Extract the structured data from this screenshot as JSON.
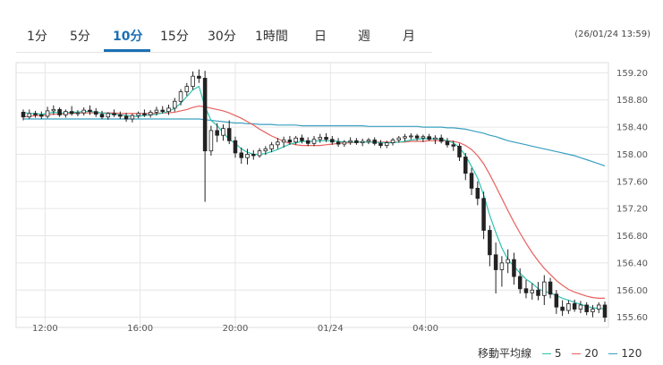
{
  "tabs": [
    {
      "label": "1分",
      "active": false
    },
    {
      "label": "5分",
      "active": false
    },
    {
      "label": "10分",
      "active": true
    },
    {
      "label": "15分",
      "active": false
    },
    {
      "label": "30分",
      "active": false
    },
    {
      "label": "1時間",
      "active": false
    },
    {
      "label": "日",
      "active": false
    },
    {
      "label": "週",
      "active": false
    },
    {
      "label": "月",
      "active": false
    }
  ],
  "timestamp": "(26/01/24 13:59)",
  "legend": {
    "title": "移動平均線",
    "items": [
      {
        "label": "5",
        "color": "#2ec4b0"
      },
      {
        "label": "20",
        "color": "#e8605c"
      },
      {
        "label": "120",
        "color": "#3a9fc0"
      }
    ]
  },
  "colors": {
    "accent": "#1a6fb3",
    "candle": "#222222",
    "grid": "#e6e6e6"
  },
  "chart_data": {
    "type": "line",
    "ylim": [
      155.45,
      159.35
    ],
    "y_ticks": [
      "159.20",
      "158.80",
      "158.40",
      "158.00",
      "157.60",
      "157.20",
      "156.80",
      "156.40",
      "156.00",
      "155.60"
    ],
    "x_ticks": [
      "12:00",
      "16:00",
      "20:00",
      "01/24",
      "04:00"
    ],
    "candles": [
      [
        158.62,
        158.66,
        158.5,
        158.55
      ],
      [
        158.55,
        158.66,
        158.52,
        158.6
      ],
      [
        158.6,
        158.64,
        158.54,
        158.58
      ],
      [
        158.58,
        158.63,
        158.52,
        158.56
      ],
      [
        158.56,
        158.7,
        158.53,
        158.64
      ],
      [
        158.64,
        158.72,
        158.58,
        158.66
      ],
      [
        158.66,
        158.69,
        158.55,
        158.58
      ],
      [
        158.58,
        158.66,
        158.54,
        158.63
      ],
      [
        158.63,
        158.71,
        158.57,
        158.6
      ],
      [
        158.6,
        158.65,
        158.56,
        158.61
      ],
      [
        158.61,
        158.69,
        158.57,
        158.65
      ],
      [
        158.65,
        158.72,
        158.58,
        158.63
      ],
      [
        158.63,
        158.68,
        158.55,
        158.59
      ],
      [
        158.59,
        158.64,
        158.52,
        158.55
      ],
      [
        158.55,
        158.62,
        158.51,
        158.6
      ],
      [
        158.6,
        158.66,
        158.55,
        158.58
      ],
      [
        158.58,
        158.63,
        158.52,
        158.56
      ],
      [
        158.56,
        158.61,
        158.48,
        158.52
      ],
      [
        158.52,
        158.6,
        158.47,
        158.57
      ],
      [
        158.57,
        158.63,
        158.53,
        158.6
      ],
      [
        158.6,
        158.66,
        158.55,
        158.58
      ],
      [
        158.58,
        158.65,
        158.54,
        158.62
      ],
      [
        158.62,
        158.7,
        158.57,
        158.65
      ],
      [
        158.65,
        158.71,
        158.6,
        158.63
      ],
      [
        158.63,
        158.73,
        158.58,
        158.68
      ],
      [
        158.68,
        158.83,
        158.63,
        158.78
      ],
      [
        158.78,
        158.96,
        158.72,
        158.92
      ],
      [
        158.92,
        159.05,
        158.86,
        159.0
      ],
      [
        159.0,
        159.22,
        158.95,
        159.15
      ],
      [
        159.15,
        159.25,
        159.05,
        159.12
      ],
      [
        159.12,
        159.23,
        157.3,
        158.05
      ],
      [
        158.05,
        158.42,
        157.98,
        158.35
      ],
      [
        158.35,
        158.46,
        158.18,
        158.28
      ],
      [
        158.28,
        158.44,
        158.2,
        158.38
      ],
      [
        158.38,
        158.5,
        158.15,
        158.2
      ],
      [
        158.2,
        158.26,
        157.95,
        158.02
      ],
      [
        158.02,
        158.1,
        157.86,
        157.95
      ],
      [
        157.95,
        158.08,
        157.85,
        158.0
      ],
      [
        158.0,
        158.06,
        157.92,
        157.98
      ],
      [
        157.98,
        158.09,
        157.95,
        158.05
      ],
      [
        158.05,
        158.12,
        157.99,
        158.08
      ],
      [
        158.08,
        158.18,
        158.03,
        158.14
      ],
      [
        158.14,
        158.24,
        158.08,
        158.18
      ],
      [
        158.18,
        158.26,
        158.1,
        158.21
      ],
      [
        158.21,
        158.27,
        158.14,
        158.18
      ],
      [
        158.18,
        158.27,
        158.14,
        158.24
      ],
      [
        158.24,
        158.29,
        158.16,
        158.2
      ],
      [
        158.2,
        158.25,
        158.12,
        158.16
      ],
      [
        158.16,
        158.27,
        158.12,
        158.22
      ],
      [
        158.22,
        158.3,
        158.17,
        158.25
      ],
      [
        158.25,
        158.31,
        158.18,
        158.22
      ],
      [
        158.22,
        158.27,
        158.14,
        158.18
      ],
      [
        158.18,
        158.24,
        158.11,
        158.15
      ],
      [
        158.15,
        158.21,
        158.11,
        158.18
      ],
      [
        158.18,
        158.25,
        158.14,
        158.2
      ],
      [
        158.2,
        158.24,
        158.14,
        158.17
      ],
      [
        158.17,
        158.23,
        158.12,
        158.19
      ],
      [
        158.19,
        158.24,
        158.15,
        158.21
      ],
      [
        158.21,
        158.25,
        158.13,
        158.16
      ],
      [
        158.16,
        158.21,
        158.09,
        158.13
      ],
      [
        158.13,
        158.2,
        158.09,
        158.17
      ],
      [
        158.17,
        158.24,
        158.13,
        158.21
      ],
      [
        158.21,
        158.27,
        158.17,
        158.24
      ],
      [
        158.24,
        158.3,
        158.19,
        158.26
      ],
      [
        158.26,
        158.31,
        158.22,
        158.27
      ],
      [
        158.27,
        158.3,
        158.2,
        158.24
      ],
      [
        158.24,
        158.29,
        158.18,
        158.26
      ],
      [
        158.26,
        158.3,
        158.2,
        158.22
      ],
      [
        158.22,
        158.28,
        158.15,
        158.24
      ],
      [
        158.24,
        158.29,
        158.16,
        158.19
      ],
      [
        158.19,
        158.24,
        158.1,
        158.14
      ],
      [
        158.14,
        158.2,
        158.05,
        158.12
      ],
      [
        158.12,
        158.16,
        157.9,
        157.96
      ],
      [
        157.96,
        158.02,
        157.62,
        157.72
      ],
      [
        157.72,
        157.8,
        157.4,
        157.5
      ],
      [
        157.5,
        157.6,
        157.25,
        157.35
      ],
      [
        157.35,
        157.45,
        156.75,
        156.88
      ],
      [
        156.88,
        156.95,
        156.35,
        156.52
      ],
      [
        156.52,
        156.7,
        155.95,
        156.3
      ],
      [
        156.3,
        156.5,
        156.05,
        156.4
      ],
      [
        156.4,
        156.6,
        156.25,
        156.45
      ],
      [
        156.45,
        156.55,
        156.08,
        156.2
      ],
      [
        156.2,
        156.32,
        155.95,
        156.02
      ],
      [
        156.02,
        156.15,
        155.88,
        155.96
      ],
      [
        155.96,
        156.1,
        155.86,
        156.0
      ],
      [
        156.0,
        156.12,
        155.85,
        155.92
      ],
      [
        155.92,
        156.22,
        155.78,
        156.12
      ],
      [
        156.12,
        156.18,
        155.88,
        155.94
      ],
      [
        155.94,
        156.0,
        155.65,
        155.75
      ],
      [
        155.75,
        155.85,
        155.62,
        155.7
      ],
      [
        155.7,
        155.85,
        155.65,
        155.8
      ],
      [
        155.8,
        155.86,
        155.68,
        155.72
      ],
      [
        155.72,
        155.84,
        155.66,
        155.78
      ],
      [
        155.78,
        155.82,
        155.63,
        155.68
      ],
      [
        155.68,
        155.78,
        155.6,
        155.72
      ],
      [
        155.72,
        155.82,
        155.66,
        155.78
      ],
      [
        155.78,
        155.83,
        155.53,
        155.6
      ]
    ],
    "series": [
      {
        "name": "5",
        "color": "#2ec4b0",
        "values": [
          158.62,
          158.6,
          158.6,
          158.59,
          158.6,
          158.62,
          158.61,
          158.61,
          158.62,
          158.62,
          158.63,
          158.63,
          158.62,
          158.61,
          158.6,
          158.59,
          158.58,
          158.57,
          158.56,
          158.56,
          158.57,
          158.58,
          158.59,
          158.61,
          158.63,
          158.68,
          158.75,
          158.85,
          158.95,
          159.0,
          158.7,
          158.5,
          158.42,
          158.32,
          158.22,
          158.16,
          158.08,
          158.03,
          158.0,
          158.0,
          158.01,
          158.04,
          158.07,
          158.11,
          158.15,
          158.17,
          158.19,
          158.19,
          158.19,
          158.2,
          158.2,
          158.2,
          158.19,
          158.18,
          158.18,
          158.18,
          158.18,
          158.18,
          158.18,
          158.17,
          158.17,
          158.17,
          158.18,
          158.19,
          158.21,
          158.22,
          158.23,
          158.23,
          158.23,
          158.22,
          158.2,
          158.17,
          158.1,
          157.98,
          157.82,
          157.65,
          157.4,
          157.1,
          156.85,
          156.62,
          156.45,
          156.35,
          156.25,
          156.16,
          156.1,
          156.02,
          155.98,
          155.96,
          155.92,
          155.88,
          155.85,
          155.82,
          155.79,
          155.76,
          155.74,
          155.73,
          155.72
        ]
      },
      {
        "name": "20",
        "color": "#e8605c",
        "values": [
          158.55,
          158.56,
          158.57,
          158.57,
          158.58,
          158.59,
          158.59,
          158.6,
          158.6,
          158.61,
          158.61,
          158.61,
          158.61,
          158.61,
          158.61,
          158.61,
          158.6,
          158.6,
          158.6,
          158.6,
          158.6,
          158.6,
          158.6,
          158.61,
          158.61,
          158.62,
          158.64,
          158.66,
          158.69,
          158.71,
          158.7,
          158.68,
          158.66,
          158.64,
          158.61,
          158.57,
          158.53,
          158.48,
          158.43,
          158.37,
          158.32,
          158.27,
          158.23,
          158.19,
          158.16,
          158.14,
          158.13,
          158.13,
          158.13,
          158.13,
          158.14,
          158.15,
          158.16,
          158.17,
          158.17,
          158.18,
          158.18,
          158.18,
          158.18,
          158.18,
          158.18,
          158.18,
          158.18,
          158.18,
          158.19,
          158.19,
          158.19,
          158.2,
          158.2,
          158.2,
          158.2,
          158.19,
          158.17,
          158.13,
          158.07,
          157.98,
          157.86,
          157.7,
          157.53,
          157.35,
          157.17,
          157.0,
          156.84,
          156.69,
          156.55,
          156.43,
          156.32,
          156.23,
          156.14,
          156.07,
          156.01,
          155.97,
          155.94,
          155.91,
          155.89,
          155.88,
          155.88
        ]
      },
      {
        "name": "120",
        "color": "#3a9fc0",
        "values": [
          158.52,
          158.52,
          158.52,
          158.52,
          158.52,
          158.52,
          158.52,
          158.52,
          158.52,
          158.52,
          158.52,
          158.52,
          158.52,
          158.52,
          158.52,
          158.52,
          158.52,
          158.52,
          158.52,
          158.52,
          158.52,
          158.52,
          158.52,
          158.52,
          158.52,
          158.52,
          158.52,
          158.52,
          158.52,
          158.52,
          158.51,
          158.5,
          158.49,
          158.48,
          158.47,
          158.46,
          158.46,
          158.45,
          158.45,
          158.44,
          158.44,
          158.44,
          158.43,
          158.43,
          158.43,
          158.43,
          158.42,
          158.42,
          158.42,
          158.42,
          158.42,
          158.42,
          158.42,
          158.42,
          158.42,
          158.42,
          158.42,
          158.41,
          158.41,
          158.41,
          158.41,
          158.41,
          158.41,
          158.41,
          158.41,
          158.41,
          158.4,
          158.4,
          158.4,
          158.4,
          158.39,
          158.39,
          158.38,
          158.37,
          158.35,
          158.33,
          158.31,
          158.28,
          158.26,
          158.23,
          158.2,
          158.18,
          158.16,
          158.14,
          158.12,
          158.1,
          158.08,
          158.06,
          158.04,
          158.02,
          158.0,
          157.98,
          157.95,
          157.92,
          157.89,
          157.86,
          157.83
        ]
      }
    ]
  }
}
